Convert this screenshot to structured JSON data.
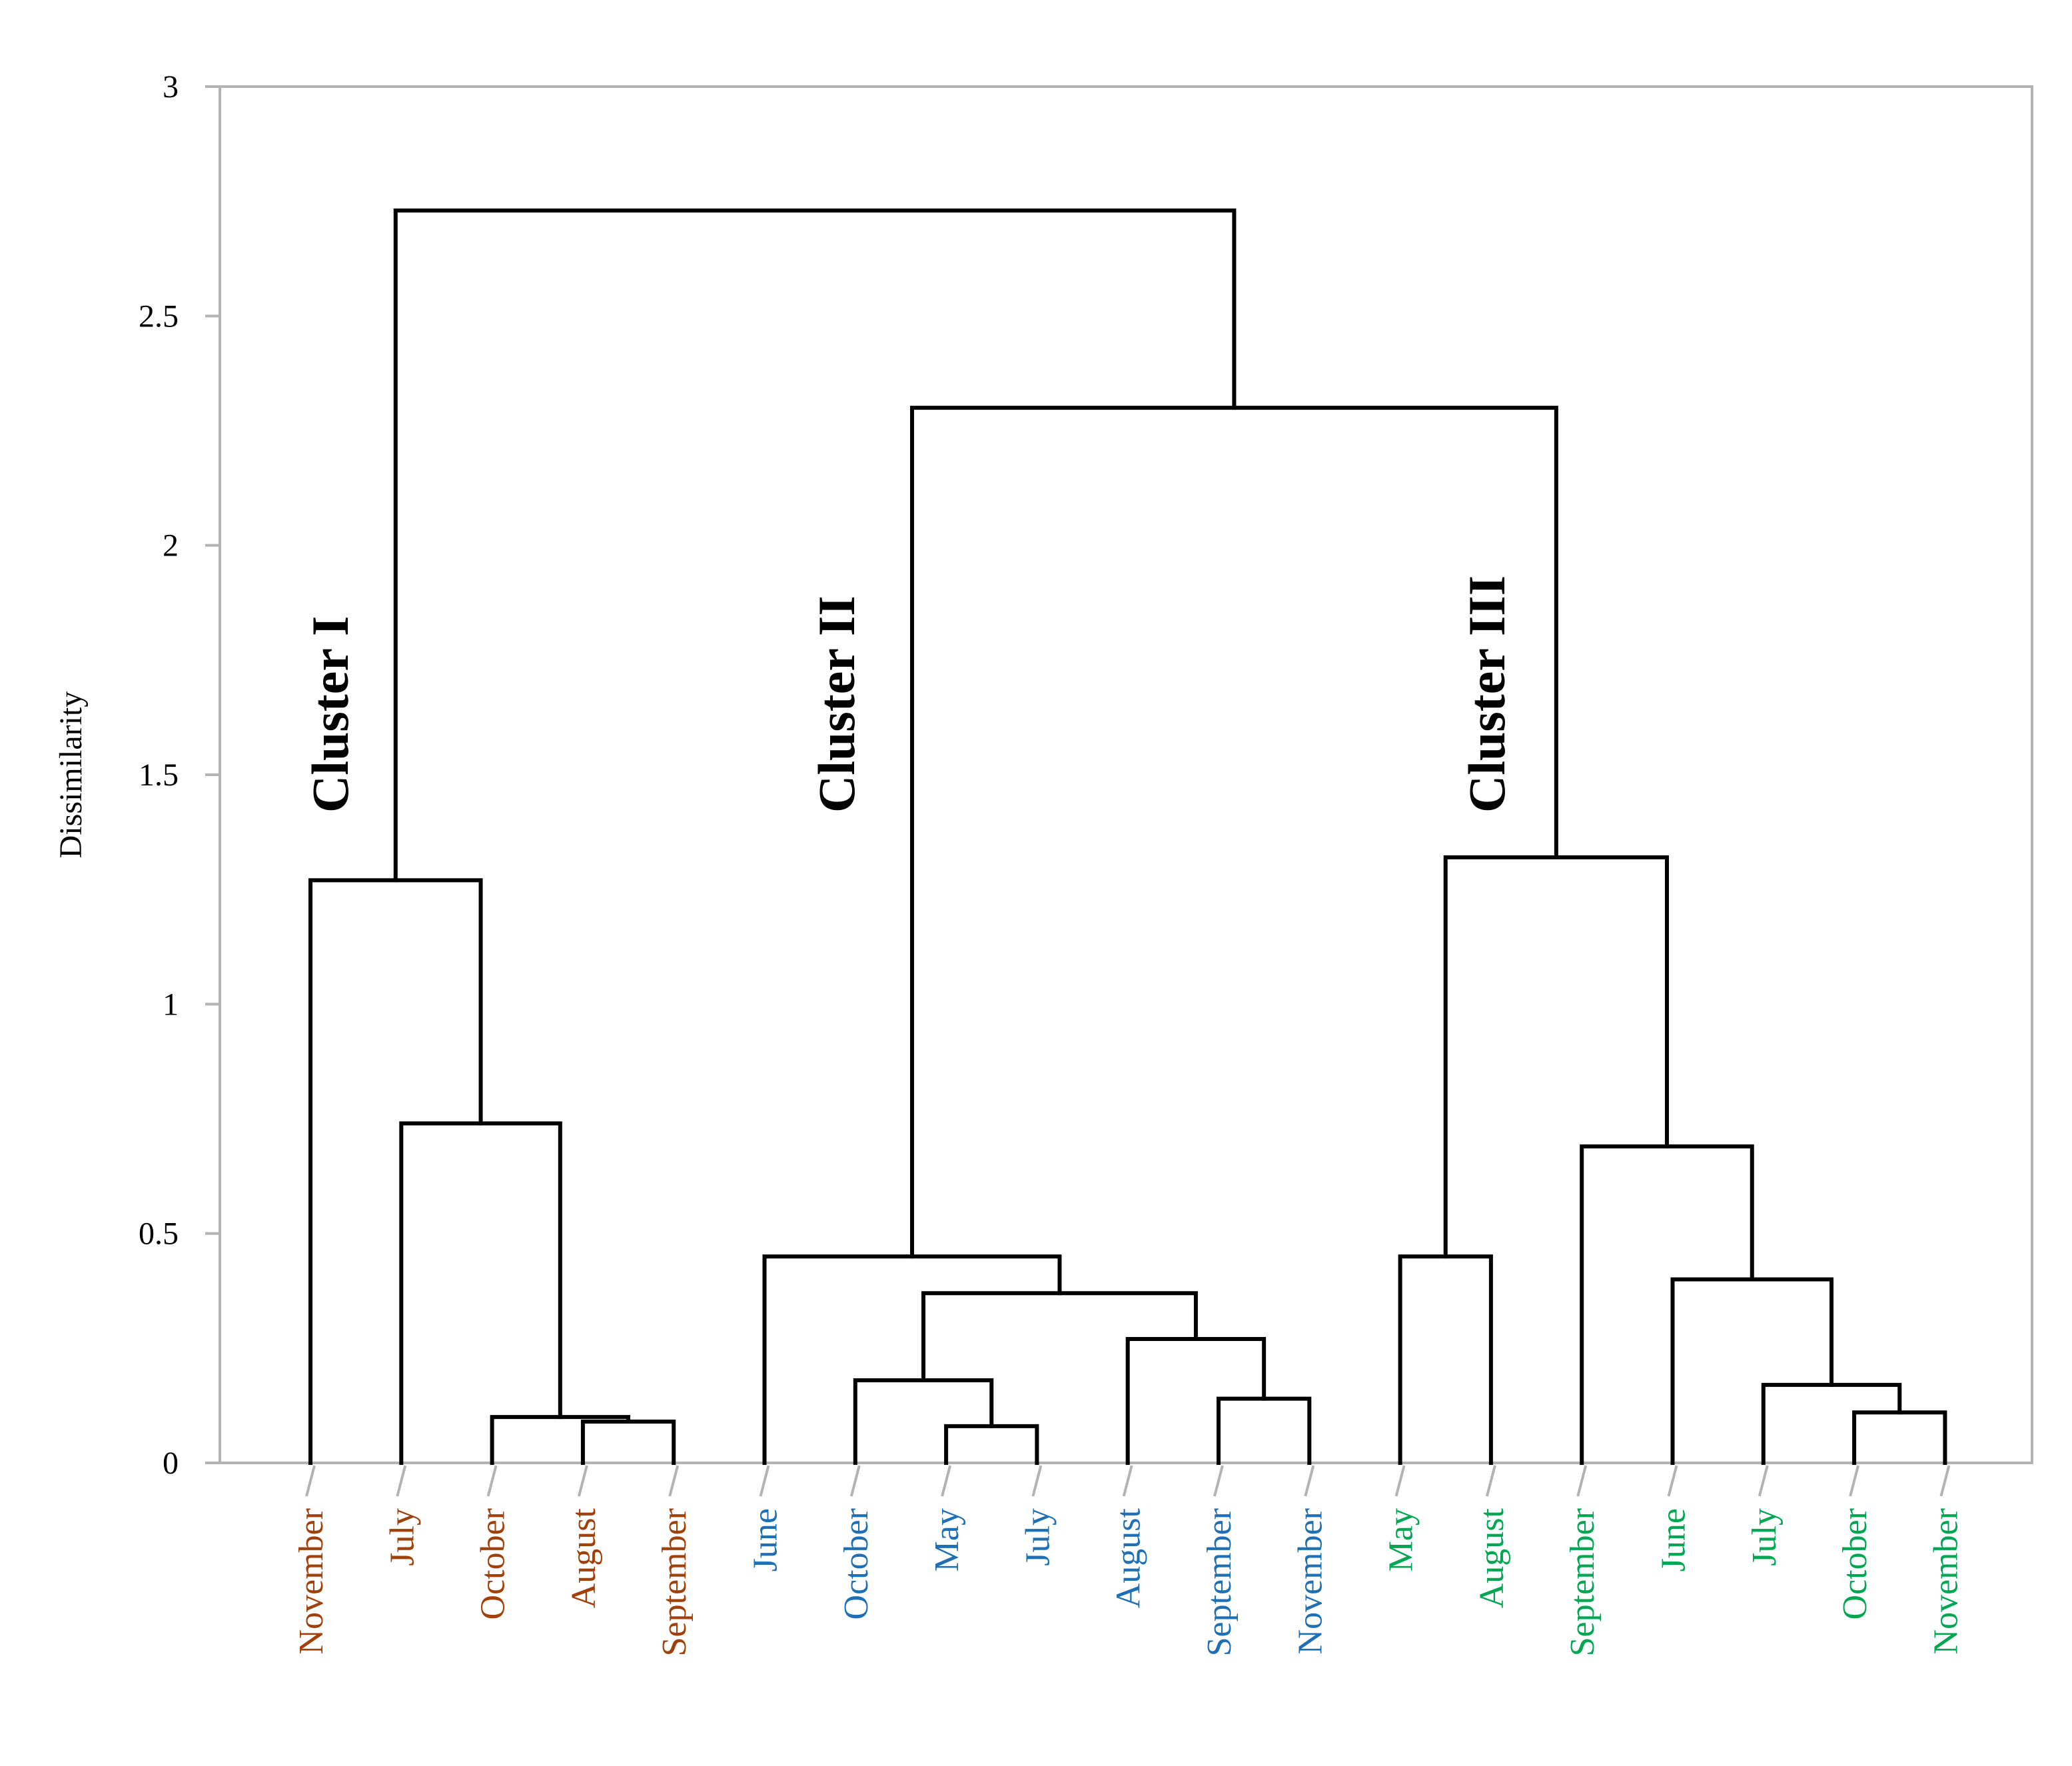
{
  "chart_data": {
    "type": "dendrogram",
    "ylabel": "Dissimilarity",
    "ylim": [
      0,
      3
    ],
    "yticks": [
      "0",
      "0.5",
      "1",
      "1.5",
      "2",
      "2.5",
      "3"
    ],
    "groups": [
      {
        "name": "Cluster I",
        "color": "#a0400a"
      },
      {
        "name": "Cluster II",
        "color": "#1f6fb4"
      },
      {
        "name": "Cluster III",
        "color": "#00a651"
      }
    ],
    "leaves": [
      {
        "label": "November",
        "group": 0
      },
      {
        "label": "July",
        "group": 0
      },
      {
        "label": "October",
        "group": 0
      },
      {
        "label": "August",
        "group": 0
      },
      {
        "label": "September",
        "group": 0
      },
      {
        "label": "June",
        "group": 1
      },
      {
        "label": "October",
        "group": 1
      },
      {
        "label": "May",
        "group": 1
      },
      {
        "label": "July",
        "group": 1
      },
      {
        "label": "August",
        "group": 1
      },
      {
        "label": "September",
        "group": 1
      },
      {
        "label": "November",
        "group": 1
      },
      {
        "label": "May",
        "group": 2
      },
      {
        "label": "August",
        "group": 2
      },
      {
        "label": "September",
        "group": 2
      },
      {
        "label": "June",
        "group": 2
      },
      {
        "label": "July",
        "group": 2
      },
      {
        "label": "October",
        "group": 2
      },
      {
        "label": "November",
        "group": 2
      }
    ],
    "merges": [
      {
        "a": "L3",
        "b": "L4",
        "height": 0.09
      },
      {
        "a": "L2",
        "b": "M0",
        "height": 0.1
      },
      {
        "a": "L1",
        "b": "M1",
        "height": 0.74
      },
      {
        "a": "L0",
        "b": "M2",
        "height": 1.27
      },
      {
        "a": "L7",
        "b": "L8",
        "height": 0.08
      },
      {
        "a": "L6",
        "b": "M4",
        "height": 0.18
      },
      {
        "a": "L10",
        "b": "L11",
        "height": 0.14
      },
      {
        "a": "L9",
        "b": "M6",
        "height": 0.27
      },
      {
        "a": "M5",
        "b": "M7",
        "height": 0.37
      },
      {
        "a": "L5",
        "b": "M8",
        "height": 0.45
      },
      {
        "a": "L12",
        "b": "L13",
        "height": 0.45
      },
      {
        "a": "L17",
        "b": "L18",
        "height": 0.11
      },
      {
        "a": "L16",
        "b": "M11",
        "height": 0.17
      },
      {
        "a": "L15",
        "b": "M12",
        "height": 0.4
      },
      {
        "a": "L14",
        "b": "M13",
        "height": 0.69
      },
      {
        "a": "M10",
        "b": "M14",
        "height": 1.32
      },
      {
        "a": "M9",
        "b": "M15",
        "height": 2.3
      },
      {
        "a": "M3",
        "b": "M16",
        "height": 2.73
      }
    ],
    "cluster_labels": [
      {
        "text": "Cluster I"
      },
      {
        "text": "Cluster II"
      },
      {
        "text": "Cluster III"
      }
    ]
  }
}
